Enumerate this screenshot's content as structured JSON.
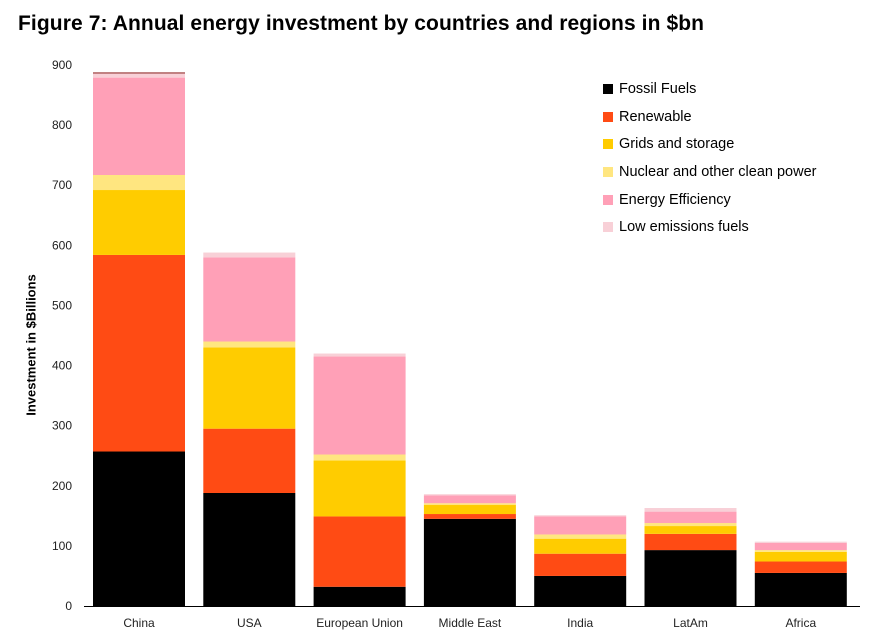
{
  "chart_data": {
    "type": "bar",
    "stacked": true,
    "title": "Figure 7: Annual energy investment by countries and regions in $bn",
    "ylabel": "Investment in $Billions",
    "xlabel": "",
    "ylim": [
      0,
      900
    ],
    "yticks": [
      0,
      100,
      200,
      300,
      400,
      500,
      600,
      700,
      800,
      900
    ],
    "grid": false,
    "legend_position": "top-right",
    "categories": [
      "China",
      "USA",
      "European Union",
      "Middle East",
      "India",
      "LatAm",
      "Africa"
    ],
    "series": [
      {
        "name": "Fossil Fuels",
        "color": "#000000",
        "values": [
          257,
          188,
          32,
          145,
          50,
          93,
          55
        ]
      },
      {
        "name": "Renewable",
        "color": "#ff4b14",
        "values": [
          327,
          107,
          117,
          8,
          37,
          27,
          19
        ]
      },
      {
        "name": "Grids and storage",
        "color": "#ffcc00",
        "values": [
          108,
          135,
          93,
          15,
          25,
          13,
          16
        ]
      },
      {
        "name": "Nuclear and other clean power",
        "color": "#ffe680",
        "values": [
          25,
          10,
          10,
          3,
          7,
          5,
          3
        ]
      },
      {
        "name": "Energy Efficiency",
        "color": "#ffa0b7",
        "values": [
          162,
          140,
          163,
          13,
          30,
          19,
          12
        ]
      },
      {
        "name": "Low emissions fuels",
        "color": "#f8d0d7",
        "values": [
          7,
          8,
          5,
          2,
          2,
          6,
          2
        ]
      }
    ],
    "top_line": {
      "category": "China",
      "value": 888,
      "color": "#b06060"
    }
  }
}
